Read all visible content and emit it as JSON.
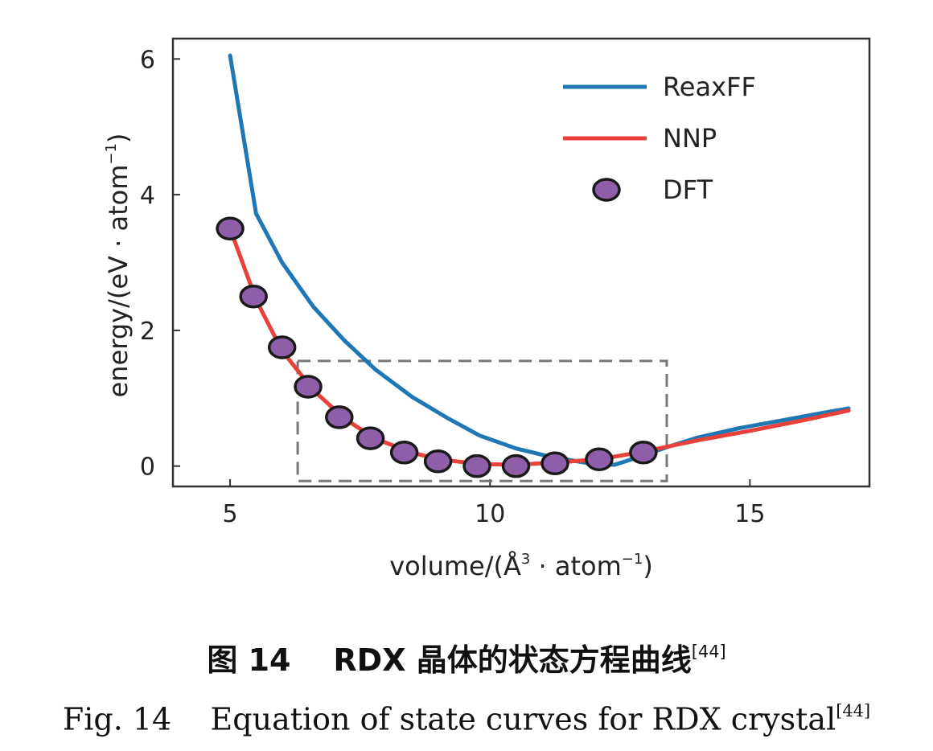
{
  "chart_data": {
    "type": "line",
    "xlabel_main": "volume/(Å",
    "xlabel_sup": "3",
    "xlabel_tail": " · atom",
    "xlabel_sup2": "−1",
    "xlabel_end": ")",
    "ylabel_main": "energy/(eV · atom",
    "ylabel_sup": "−1",
    "ylabel_end": ")",
    "xlim": [
      3.9,
      17.3
    ],
    "ylim": [
      -0.3,
      6.3
    ],
    "x_ticks": [
      5,
      10,
      15
    ],
    "y_ticks": [
      0,
      2,
      4,
      6
    ],
    "legend_position": "top-right",
    "series": [
      {
        "name": "ReaxFF",
        "style": "line",
        "color": "#1f77b4",
        "x": [
          5.0,
          5.5,
          6.0,
          6.6,
          7.2,
          7.8,
          8.5,
          9.2,
          9.8,
          10.5,
          11.2,
          11.6,
          12.0,
          12.4,
          12.8,
          13.4,
          14.0,
          14.8,
          15.6,
          16.3,
          16.9
        ],
        "y": [
          6.05,
          3.72,
          3.0,
          2.35,
          1.85,
          1.42,
          1.02,
          0.7,
          0.45,
          0.26,
          0.13,
          0.08,
          0.03,
          0.02,
          0.12,
          0.28,
          0.42,
          0.56,
          0.67,
          0.77,
          0.85
        ]
      },
      {
        "name": "NNP",
        "style": "line",
        "color": "#e8413a",
        "x": [
          5.0,
          5.5,
          6.0,
          6.6,
          7.2,
          7.8,
          8.5,
          9.0,
          9.8,
          10.5,
          11.2,
          12.1,
          13.0,
          14.0,
          15.0,
          16.0,
          16.9
        ],
        "y": [
          3.5,
          2.45,
          1.7,
          1.12,
          0.7,
          0.4,
          0.2,
          0.1,
          0.03,
          0.02,
          0.05,
          0.1,
          0.22,
          0.38,
          0.52,
          0.67,
          0.82
        ]
      },
      {
        "name": "DFT",
        "style": "markers",
        "color": "#8e5fa8",
        "x": [
          5.0,
          5.45,
          6.0,
          6.5,
          7.1,
          7.7,
          8.35,
          9.0,
          9.75,
          10.5,
          11.25,
          12.1,
          12.95
        ],
        "y": [
          3.5,
          2.5,
          1.75,
          1.17,
          0.72,
          0.41,
          0.2,
          0.07,
          0.0,
          0.0,
          0.04,
          0.1,
          0.2
        ]
      }
    ],
    "annotation": {
      "type": "dashed-box",
      "x_range": [
        6.3,
        13.4
      ],
      "y_range": [
        -0.22,
        1.55
      ],
      "color": "#777777"
    }
  },
  "caption": {
    "cn_label": "图 14",
    "cn_text": "RDX 晶体的状态方程曲线",
    "cn_ref": "[44]",
    "en_label": "Fig. 14",
    "en_text": "Equation of state curves for RDX crystal",
    "en_ref": "[44]"
  }
}
